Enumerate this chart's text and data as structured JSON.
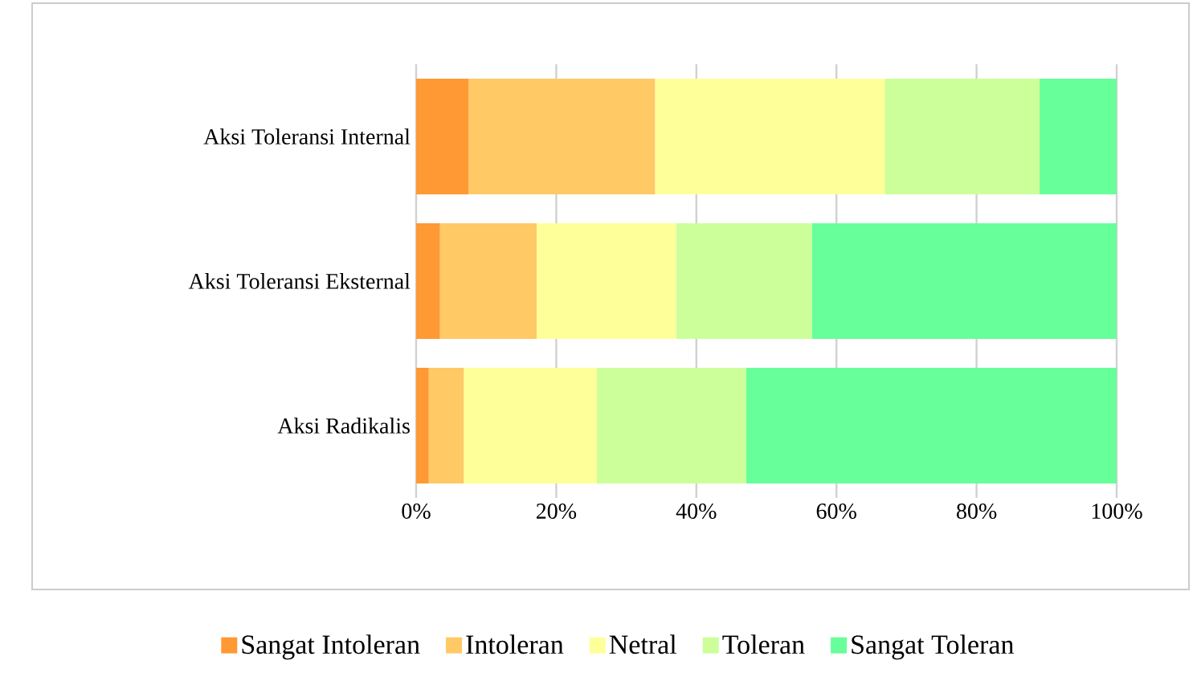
{
  "chart_data": {
    "type": "bar",
    "orientation": "horizontal",
    "stacked": true,
    "categories": [
      "Aksi Toleransi Internal",
      "Aksi Toleransi Eksternal",
      "Aksi Radikalis"
    ],
    "series": [
      {
        "name": "Sangat Intoleran",
        "color": "#ff9933",
        "values": [
          7.5,
          3.4,
          1.8
        ]
      },
      {
        "name": "Intoleran",
        "color": "#ffc966",
        "values": [
          26.6,
          13.8,
          5.0
        ]
      },
      {
        "name": "Netral",
        "color": "#ffff99",
        "values": [
          32.8,
          19.9,
          19.0
        ]
      },
      {
        "name": "Toleran",
        "color": "#ccff99",
        "values": [
          22.1,
          19.4,
          21.3
        ]
      },
      {
        "name": "Sangat Toleran",
        "color": "#66ff99",
        "values": [
          11.0,
          43.5,
          52.9
        ]
      }
    ],
    "xlim": [
      0,
      100
    ],
    "xticks": [
      {
        "value": 0,
        "label": "0%"
      },
      {
        "value": 20,
        "label": "20%"
      },
      {
        "value": 40,
        "label": "40%"
      },
      {
        "value": 60,
        "label": "60%"
      },
      {
        "value": 80,
        "label": "80%"
      },
      {
        "value": 100,
        "label": "100%"
      }
    ],
    "grid": "x",
    "legend": "bottom"
  }
}
